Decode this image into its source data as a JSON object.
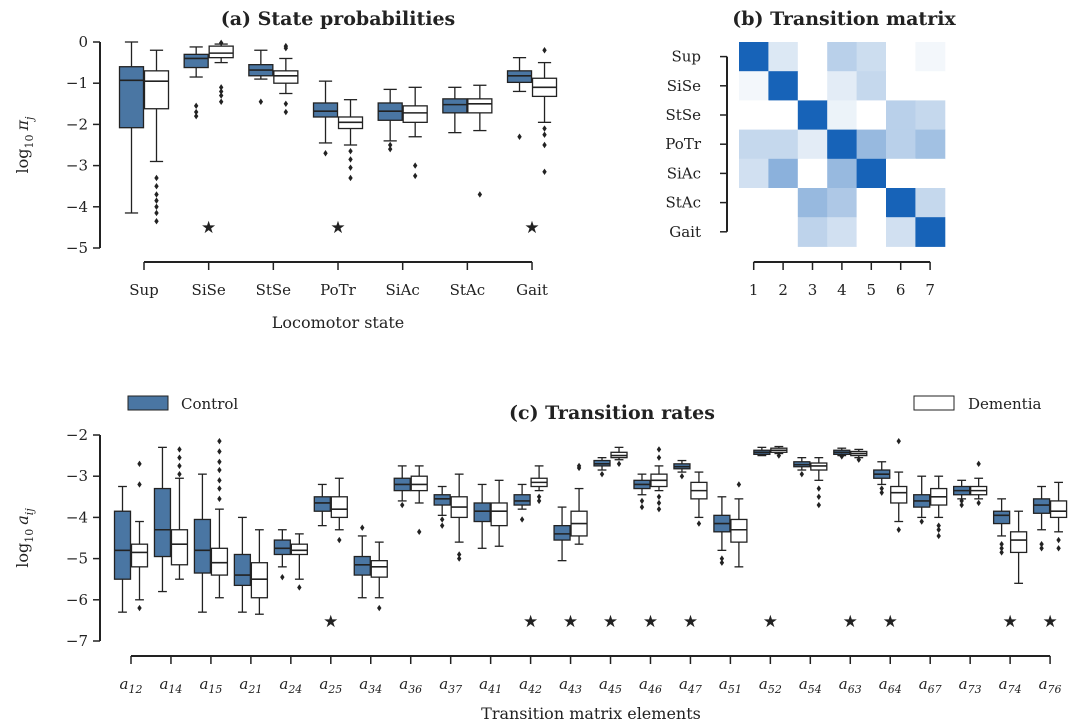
{
  "colors": {
    "control": "#4a76a3",
    "dementia": "#ffffff",
    "edge": "#222222",
    "heat_low": "#ffffff",
    "heat_high": "#1763b8"
  },
  "chart_data": [
    {
      "panel": "a",
      "type": "box",
      "title": "(a) State probabilities",
      "xlabel": "Locomotor state",
      "ylabel": "log10 π_j",
      "ylabel_parts": {
        "base": "log",
        "sub": "10",
        "sym": "π",
        "symsub": "j"
      },
      "ylim": [
        -5,
        0
      ],
      "yticks": [
        "0",
        "−1",
        "−2",
        "−3",
        "−4",
        "−5"
      ],
      "categories": [
        "Sup",
        "SiSe",
        "StSe",
        "PoTr",
        "SiAc",
        "StAc",
        "Gait"
      ],
      "significant": [
        false,
        true,
        false,
        true,
        false,
        false,
        true
      ],
      "series": [
        {
          "name": "Control",
          "boxes": [
            {
              "wl": -4.15,
              "q1": -2.08,
              "med": -0.93,
              "q3": -0.6,
              "wh": 0.0,
              "out": []
            },
            {
              "wl": -0.85,
              "q1": -0.62,
              "med": -0.4,
              "q3": -0.3,
              "wh": -0.12,
              "out": [
                -1.55,
                -1.7,
                -1.8
              ]
            },
            {
              "wl": -0.9,
              "q1": -0.82,
              "med": -0.68,
              "q3": -0.55,
              "wh": -0.2,
              "out": [
                -1.45
              ]
            },
            {
              "wl": -2.45,
              "q1": -1.82,
              "med": -1.68,
              "q3": -1.48,
              "wh": -0.95,
              "out": [
                -2.7
              ]
            },
            {
              "wl": -2.4,
              "q1": -1.9,
              "med": -1.68,
              "q3": -1.48,
              "wh": -1.15,
              "out": [
                -2.5,
                -2.6
              ]
            },
            {
              "wl": -2.2,
              "q1": -1.72,
              "med": -1.52,
              "q3": -1.38,
              "wh": -1.1,
              "out": []
            },
            {
              "wl": -1.2,
              "q1": -0.98,
              "med": -0.82,
              "q3": -0.7,
              "wh": -0.38,
              "out": [
                -2.3
              ]
            }
          ]
        },
        {
          "name": "Dementia",
          "boxes": [
            {
              "wl": -2.9,
              "q1": -1.62,
              "med": -0.95,
              "q3": -0.7,
              "wh": -0.2,
              "out": [
                -3.3,
                -3.5,
                -3.7,
                -3.85,
                -4.0,
                -4.15,
                -4.35
              ]
            },
            {
              "wl": -0.5,
              "q1": -0.38,
              "med": -0.27,
              "q3": -0.1,
              "wh": -0.05,
              "out": [
                -1.1,
                -1.2,
                -1.3,
                -1.45,
                -0.02
              ]
            },
            {
              "wl": -1.25,
              "q1": -1.0,
              "med": -0.82,
              "q3": -0.7,
              "wh": -0.4,
              "out": [
                -1.5,
                -1.7,
                -0.1,
                -0.15
              ]
            },
            {
              "wl": -2.5,
              "q1": -2.1,
              "med": -1.95,
              "q3": -1.82,
              "wh": -1.4,
              "out": [
                -2.65,
                -2.85,
                -3.05,
                -3.3
              ]
            },
            {
              "wl": -2.3,
              "q1": -1.95,
              "med": -1.72,
              "q3": -1.55,
              "wh": -1.1,
              "out": [
                -3.0,
                -3.25
              ]
            },
            {
              "wl": -2.15,
              "q1": -1.72,
              "med": -1.5,
              "q3": -1.38,
              "wh": -1.05,
              "out": [
                -3.7
              ]
            },
            {
              "wl": -1.95,
              "q1": -1.32,
              "med": -1.1,
              "q3": -0.88,
              "wh": -0.5,
              "out": [
                -2.1,
                -2.25,
                -2.5,
                -3.15,
                -0.2
              ]
            }
          ]
        }
      ]
    },
    {
      "panel": "b",
      "type": "heatmap",
      "title": "(b) Transition matrix",
      "row_labels": [
        "Sup",
        "SiSe",
        "StSe",
        "PoTr",
        "SiAc",
        "StAc",
        "Gait"
      ],
      "col_labels": [
        "1",
        "2",
        "3",
        "4",
        "5",
        "6",
        "7"
      ],
      "values": [
        [
          1.0,
          0.15,
          0.0,
          0.3,
          0.22,
          0.0,
          0.05
        ],
        [
          0.05,
          1.0,
          0.0,
          0.12,
          0.25,
          0.0,
          0.0
        ],
        [
          0.0,
          0.0,
          1.0,
          0.08,
          0.0,
          0.3,
          0.25
        ],
        [
          0.25,
          0.25,
          0.12,
          1.0,
          0.45,
          0.3,
          0.4
        ],
        [
          0.2,
          0.5,
          0.0,
          0.45,
          1.0,
          0.0,
          0.0
        ],
        [
          0.0,
          0.0,
          0.45,
          0.35,
          0.0,
          1.0,
          0.25
        ],
        [
          0.0,
          0.0,
          0.28,
          0.2,
          0.0,
          0.2,
          1.0
        ]
      ]
    },
    {
      "panel": "c",
      "type": "box",
      "title": "(c) Transition rates",
      "xlabel": "Transition matrix elements",
      "ylabel": "log10 a_ij",
      "ylabel_parts": {
        "base": "log",
        "sub": "10",
        "sym": "a",
        "symsub": "ij"
      },
      "ylim": [
        -7,
        -2
      ],
      "yticks": [
        "−2",
        "−3",
        "−4",
        "−5",
        "−6",
        "−7"
      ],
      "legend": {
        "control": "Control",
        "dementia": "Dementia"
      },
      "categories": [
        "12",
        "14",
        "15",
        "21",
        "24",
        "25",
        "34",
        "36",
        "37",
        "41",
        "42",
        "43",
        "45",
        "46",
        "47",
        "51",
        "52",
        "54",
        "63",
        "64",
        "67",
        "73",
        "74",
        "76"
      ],
      "significant": [
        false,
        false,
        false,
        false,
        false,
        true,
        false,
        false,
        false,
        false,
        true,
        true,
        true,
        true,
        true,
        false,
        true,
        false,
        true,
        true,
        false,
        false,
        true,
        true
      ],
      "series": [
        {
          "name": "Control",
          "boxes": [
            {
              "wl": -6.3,
              "q1": -5.5,
              "med": -4.8,
              "q3": -3.85,
              "wh": -3.25,
              "out": []
            },
            {
              "wl": -5.8,
              "q1": -4.95,
              "med": -4.3,
              "q3": -3.3,
              "wh": -2.3,
              "out": []
            },
            {
              "wl": -6.3,
              "q1": -5.35,
              "med": -4.8,
              "q3": -4.05,
              "wh": -2.95,
              "out": []
            },
            {
              "wl": -6.3,
              "q1": -5.65,
              "med": -5.4,
              "q3": -4.9,
              "wh": -4.0,
              "out": []
            },
            {
              "wl": -5.2,
              "q1": -4.9,
              "med": -4.75,
              "q3": -4.55,
              "wh": -4.3,
              "out": [
                -5.45
              ]
            },
            {
              "wl": -4.2,
              "q1": -3.85,
              "med": -3.65,
              "q3": -3.5,
              "wh": -3.2,
              "out": []
            },
            {
              "wl": -5.95,
              "q1": -5.4,
              "med": -5.15,
              "q3": -4.95,
              "wh": -4.45,
              "out": [
                -4.25
              ]
            },
            {
              "wl": -3.6,
              "q1": -3.35,
              "med": -3.2,
              "q3": -3.05,
              "wh": -2.75,
              "out": [
                -3.7
              ]
            },
            {
              "wl": -3.95,
              "q1": -3.7,
              "med": -3.55,
              "q3": -3.45,
              "wh": -3.25,
              "out": [
                -4.05,
                -4.2
              ]
            },
            {
              "wl": -4.75,
              "q1": -4.1,
              "med": -3.85,
              "q3": -3.65,
              "wh": -3.2,
              "out": []
            },
            {
              "wl": -3.8,
              "q1": -3.7,
              "med": -3.6,
              "q3": -3.45,
              "wh": -3.2,
              "out": [
                -4.05
              ]
            },
            {
              "wl": -5.05,
              "q1": -4.55,
              "med": -4.4,
              "q3": -4.2,
              "wh": -3.75,
              "out": []
            },
            {
              "wl": -2.85,
              "q1": -2.75,
              "med": -2.7,
              "q3": -2.62,
              "wh": -2.55,
              "out": [
                -2.95
              ]
            },
            {
              "wl": -3.45,
              "q1": -3.3,
              "med": -3.2,
              "q3": -3.1,
              "wh": -2.95,
              "out": [
                -3.6,
                -3.75
              ]
            },
            {
              "wl": -2.9,
              "q1": -2.82,
              "med": -2.77,
              "q3": -2.7,
              "wh": -2.62,
              "out": [
                -3.0
              ]
            },
            {
              "wl": -4.8,
              "q1": -4.35,
              "med": -4.15,
              "q3": -3.95,
              "wh": -3.5,
              "out": [
                -5.1,
                -5.0
              ]
            },
            {
              "wl": -2.5,
              "q1": -2.47,
              "med": -2.42,
              "q3": -2.37,
              "wh": -2.3,
              "out": []
            },
            {
              "wl": -2.85,
              "q1": -2.77,
              "med": -2.72,
              "q3": -2.65,
              "wh": -2.55,
              "out": [
                -2.95
              ]
            },
            {
              "wl": -2.5,
              "q1": -2.47,
              "med": -2.42,
              "q3": -2.37,
              "wh": -2.32,
              "out": [
                -2.52
              ]
            },
            {
              "wl": -3.2,
              "q1": -3.05,
              "med": -2.95,
              "q3": -2.85,
              "wh": -2.65,
              "out": [
                -3.3,
                -3.4
              ]
            },
            {
              "wl": -4.0,
              "q1": -3.75,
              "med": -3.6,
              "q3": -3.45,
              "wh": -3.0,
              "out": [
                -4.1
              ]
            },
            {
              "wl": -3.55,
              "q1": -3.45,
              "med": -3.35,
              "q3": -3.25,
              "wh": -3.1,
              "out": [
                -3.6,
                -3.7
              ]
            },
            {
              "wl": -4.45,
              "q1": -4.15,
              "med": -3.95,
              "q3": -3.85,
              "wh": -3.55,
              "out": [
                -4.65,
                -4.75,
                -4.85
              ]
            },
            {
              "wl": -4.3,
              "q1": -3.9,
              "med": -3.7,
              "q3": -3.55,
              "wh": -3.25,
              "out": [
                -4.65,
                -4.75
              ]
            }
          ]
        },
        {
          "name": "Dementia",
          "boxes": [
            {
              "wl": -6.0,
              "q1": -5.2,
              "med": -4.85,
              "q3": -4.65,
              "wh": -4.1,
              "out": [
                -6.2,
                -3.2,
                -2.7
              ]
            },
            {
              "wl": -5.5,
              "q1": -5.15,
              "med": -4.65,
              "q3": -4.3,
              "wh": -3.05,
              "out": [
                -2.95,
                -2.75,
                -2.55,
                -2.35
              ]
            },
            {
              "wl": -5.95,
              "q1": -5.4,
              "med": -5.1,
              "q3": -4.75,
              "wh": -3.8,
              "out": [
                -3.55,
                -3.3,
                -3.1,
                -2.85,
                -2.65,
                -2.4,
                -2.15
              ]
            },
            {
              "wl": -6.35,
              "q1": -5.95,
              "med": -5.5,
              "q3": -5.1,
              "wh": -4.3,
              "out": []
            },
            {
              "wl": -5.5,
              "q1": -4.9,
              "med": -4.8,
              "q3": -4.65,
              "wh": -4.4,
              "out": [
                -5.7
              ]
            },
            {
              "wl": -4.3,
              "q1": -4.0,
              "med": -3.8,
              "q3": -3.5,
              "wh": -3.05,
              "out": [
                -4.55
              ]
            },
            {
              "wl": -5.95,
              "q1": -5.45,
              "med": -5.2,
              "q3": -5.05,
              "wh": -4.6,
              "out": [
                -6.2
              ]
            },
            {
              "wl": -3.65,
              "q1": -3.35,
              "med": -3.2,
              "q3": -3.0,
              "wh": -2.75,
              "out": [
                -4.35
              ]
            },
            {
              "wl": -4.6,
              "q1": -4.0,
              "med": -3.75,
              "q3": -3.5,
              "wh": -2.95,
              "out": [
                -4.9,
                -5.0
              ]
            },
            {
              "wl": -4.7,
              "q1": -4.2,
              "med": -3.85,
              "q3": -3.65,
              "wh": -3.1,
              "out": []
            },
            {
              "wl": -3.35,
              "q1": -3.25,
              "med": -3.15,
              "q3": -3.05,
              "wh": -2.75,
              "out": [
                -3.5,
                -3.6
              ]
            },
            {
              "wl": -4.65,
              "q1": -4.45,
              "med": -4.15,
              "q3": -3.85,
              "wh": -3.3,
              "out": [
                -2.8,
                -2.75
              ]
            },
            {
              "wl": -2.6,
              "q1": -2.55,
              "med": -2.5,
              "q3": -2.42,
              "wh": -2.3,
              "out": [
                -2.7
              ]
            },
            {
              "wl": -3.35,
              "q1": -3.25,
              "med": -3.1,
              "q3": -2.95,
              "wh": -2.75,
              "out": [
                -3.5,
                -3.65,
                -3.8,
                -2.55,
                -2.35
              ]
            },
            {
              "wl": -4.0,
              "q1": -3.55,
              "med": -3.35,
              "q3": -3.15,
              "wh": -2.9,
              "out": [
                -4.15
              ]
            },
            {
              "wl": -5.2,
              "q1": -4.6,
              "med": -4.3,
              "q3": -4.05,
              "wh": -3.55,
              "out": [
                -3.2
              ]
            },
            {
              "wl": -2.45,
              "q1": -2.42,
              "med": -2.37,
              "q3": -2.32,
              "wh": -2.28,
              "out": [
                -2.5
              ]
            },
            {
              "wl": -3.1,
              "q1": -2.85,
              "med": -2.75,
              "q3": -2.68,
              "wh": -2.55,
              "out": [
                -3.3,
                -3.5,
                -3.7
              ]
            },
            {
              "wl": -2.55,
              "q1": -2.5,
              "med": -2.45,
              "q3": -2.4,
              "wh": -2.35,
              "out": [
                -2.6
              ]
            },
            {
              "wl": -4.1,
              "q1": -3.65,
              "med": -3.4,
              "q3": -3.25,
              "wh": -2.9,
              "out": [
                -4.3,
                -2.15
              ]
            },
            {
              "wl": -4.0,
              "q1": -3.7,
              "med": -3.5,
              "q3": -3.3,
              "wh": -3.0,
              "out": [
                -4.3,
                -4.45,
                -4.2
              ]
            },
            {
              "wl": -3.55,
              "q1": -3.45,
              "med": -3.35,
              "q3": -3.25,
              "wh": -3.05,
              "out": [
                -2.7,
                -3.65
              ]
            },
            {
              "wl": -5.6,
              "q1": -4.85,
              "med": -4.55,
              "q3": -4.35,
              "wh": -3.85,
              "out": []
            },
            {
              "wl": -4.35,
              "q1": -4.0,
              "med": -3.85,
              "q3": -3.6,
              "wh": -3.15,
              "out": [
                -4.55,
                -4.75
              ]
            }
          ]
        }
      ]
    }
  ]
}
